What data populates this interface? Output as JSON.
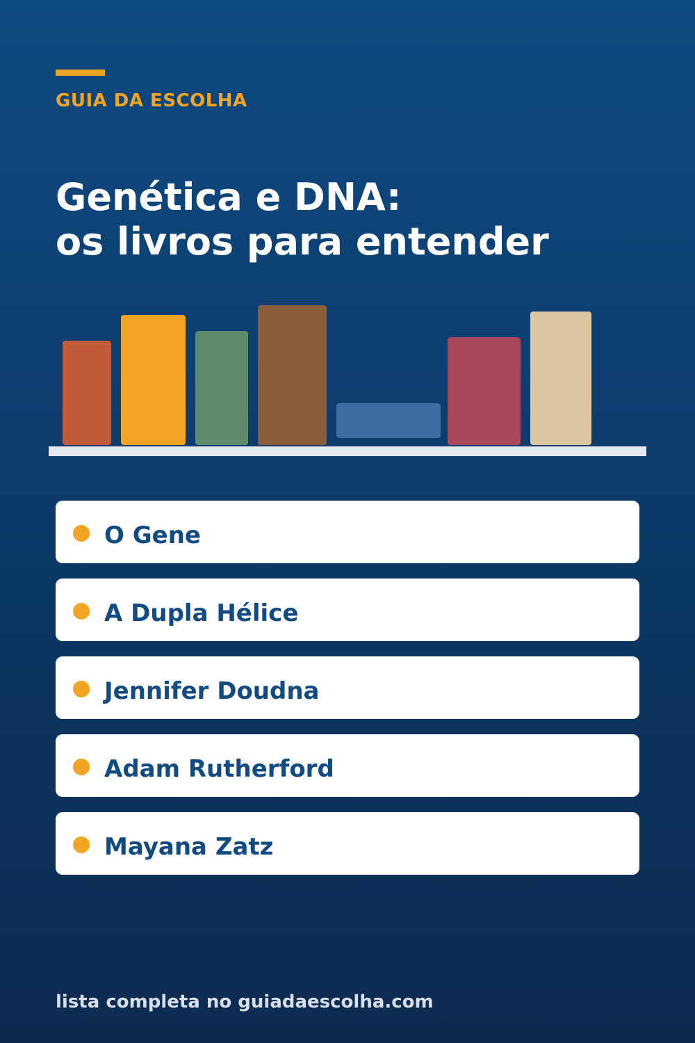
{
  "header": {
    "brand": "GUIA DA ESCOLHA",
    "title_line1": "Genética e DNA:",
    "title_line2": "os livros para entender"
  },
  "items": [
    "O Gene",
    "A Dupla Hélice",
    "Jennifer Doudna",
    "Adam Rutherford",
    "Mayana Zatz"
  ],
  "footer": "lista completa no guiadaescolha.com"
}
